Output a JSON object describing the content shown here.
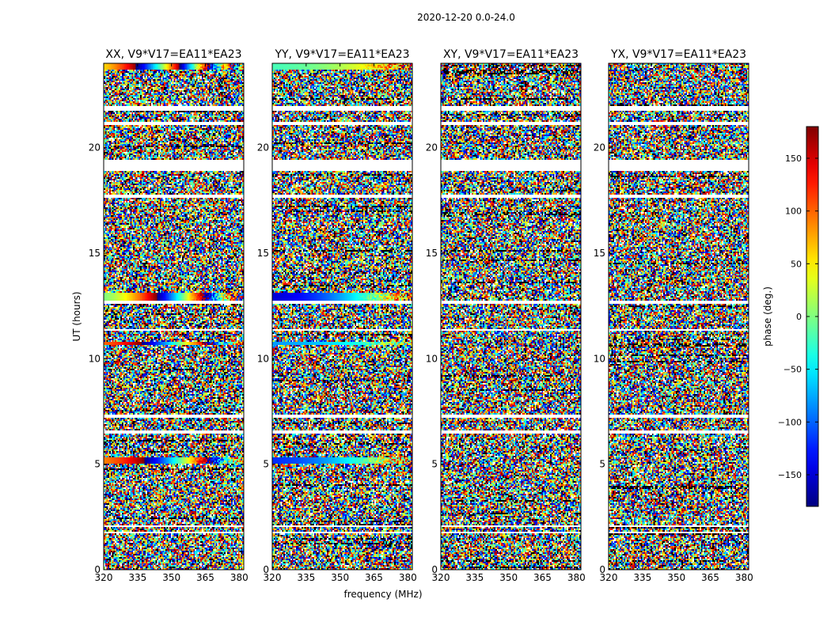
{
  "figure": {
    "title": "2020-12-20 0.0-24.0",
    "xlabel": "frequency (MHz)",
    "ylabel": "UT (hours)"
  },
  "chart_data": {
    "type": "heatmap",
    "title": "2020-12-20 0.0-24.0",
    "xlabel": "frequency (MHz)",
    "ylabel": "UT (hours)",
    "xlim": [
      320,
      382
    ],
    "ylim": [
      0,
      24
    ],
    "xticks": [
      320,
      335,
      350,
      365,
      380
    ],
    "xtick_labels": [
      "320",
      "335",
      "350",
      "365",
      "380"
    ],
    "yticks": [
      0,
      5,
      10,
      15,
      20
    ],
    "ytick_labels": [
      "0",
      "5",
      "10",
      "15",
      "20"
    ],
    "panels": [
      {
        "title": "XX, V9*V17=EA11*EA23",
        "coherent_bands": [
          {
            "t0": 23.7,
            "t1": 24.0,
            "start_phase": 60,
            "rate": 6.5
          },
          {
            "t0": 12.75,
            "t1": 13.15,
            "start_phase": 0,
            "rate": 4.5
          },
          {
            "t0": 10.62,
            "t1": 10.82,
            "start_phase": 100,
            "rate": 3.5
          },
          {
            "t0": 5.05,
            "t1": 5.35,
            "start_phase": 90,
            "rate": 3.5
          }
        ]
      },
      {
        "title": "YY, V9*V17=EA11*EA23",
        "coherent_bands": [
          {
            "t0": 23.7,
            "t1": 24.0,
            "start_phase": -20,
            "rate": 0.6
          },
          {
            "t0": 12.75,
            "t1": 13.15,
            "start_phase": -150,
            "rate": 1.2
          },
          {
            "t0": 10.62,
            "t1": 10.82,
            "start_phase": -80,
            "rate": 0.5
          },
          {
            "t0": 5.05,
            "t1": 5.35,
            "start_phase": -120,
            "rate": 1.0
          }
        ]
      },
      {
        "title": "XY, V9*V17=EA11*EA23",
        "coherent_bands": []
      },
      {
        "title": "YX, V9*V17=EA11*EA23",
        "coherent_bands": []
      }
    ],
    "flagged_gaps": [
      [
        21.75,
        22.0
      ],
      [
        21.05,
        21.25
      ],
      [
        18.9,
        19.4
      ],
      [
        17.6,
        17.75
      ],
      [
        12.6,
        12.75
      ],
      [
        11.3,
        11.4
      ],
      [
        7.2,
        7.35
      ],
      [
        6.45,
        6.6
      ],
      [
        2.0,
        2.12
      ],
      [
        1.75,
        1.82
      ]
    ],
    "colorbar": {
      "label": "phase (deg.)",
      "min": -180,
      "max": 180,
      "ticks": [
        150,
        100,
        50,
        0,
        -50,
        -100,
        -150
      ],
      "tick_labels": [
        "150",
        "100",
        "50",
        "0",
        "−50",
        "−100",
        "−150"
      ],
      "colormap": "jet"
    }
  }
}
